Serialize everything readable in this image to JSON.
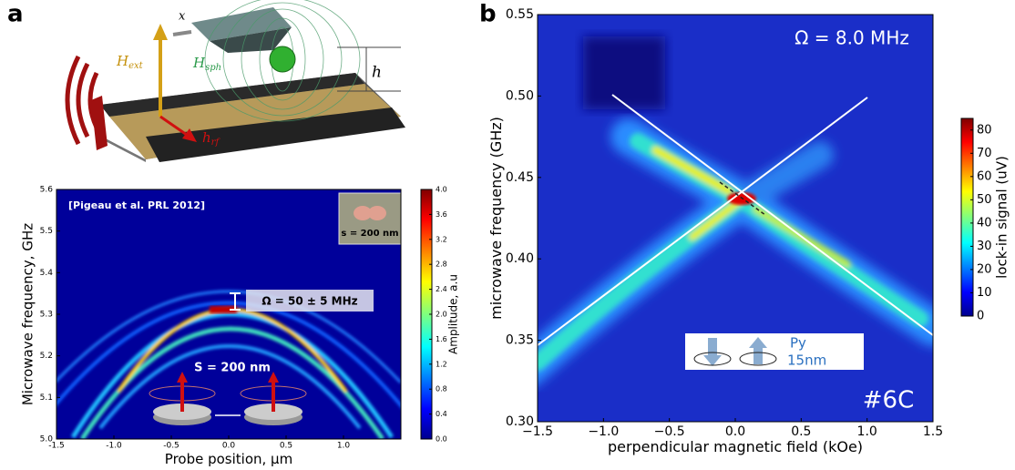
{
  "panel_a": {
    "label": "a",
    "illustration_labels": {
      "x": "x",
      "h_ext": {
        "main": "H",
        "sub": "ext"
      },
      "h_sph": {
        "main": "H",
        "sub": "sph"
      },
      "h": "h",
      "h_rf": {
        "main": "h",
        "sub": "rf"
      }
    },
    "plot": {
      "x_label": "Probe position, μm",
      "y_label": "Microwave frequency, GHz",
      "colorbar_label": "Amplitude, a.u",
      "xlim": [
        -1.5,
        1.5
      ],
      "ylim": [
        5.0,
        5.6
      ],
      "xticks": [
        {
          "value": -1.5,
          "label": "-1.5"
        },
        {
          "value": -1.0,
          "label": "-1.0"
        },
        {
          "value": -0.5,
          "label": "-0.5"
        },
        {
          "value": 0,
          "label": "0.0"
        },
        {
          "value": 0.5,
          "label": "0.5"
        },
        {
          "value": 1.0,
          "label": "1.0"
        }
      ],
      "yticks": [
        {
          "value": 5.0,
          "label": "5.0"
        },
        {
          "value": 5.1,
          "label": "5.1"
        },
        {
          "value": 5.2,
          "label": "5.2"
        },
        {
          "value": 5.3,
          "label": "5.3"
        },
        {
          "value": 5.4,
          "label": "5.4"
        },
        {
          "value": 5.5,
          "label": "5.5"
        },
        {
          "value": 5.6,
          "label": "5.6"
        }
      ],
      "cbar_lim": [
        0,
        4.0
      ],
      "cbar_ticks": [
        {
          "value": 0,
          "label": "0.0"
        },
        {
          "value": 0.4,
          "label": "0.4"
        },
        {
          "value": 0.8,
          "label": "0.8"
        },
        {
          "value": 1.2,
          "label": "1.2"
        },
        {
          "value": 1.6,
          "label": "1.6"
        },
        {
          "value": 2.0,
          "label": "2.0"
        },
        {
          "value": 2.4,
          "label": "2.4"
        },
        {
          "value": 2.8,
          "label": "2.8"
        },
        {
          "value": 3.2,
          "label": "3.2"
        },
        {
          "value": 3.6,
          "label": "3.6"
        },
        {
          "value": 4.0,
          "label": "4.0"
        }
      ],
      "annotations": {
        "citation": "[Pigeau et al. PRL 2012]",
        "inset": "s = 200 nm",
        "splitting": "Ω = 50 ± 5 MHz",
        "spacing": "S = 200 nm"
      }
    }
  },
  "panel_b": {
    "label": "b",
    "plot": {
      "x_label": "perpendicular magnetic field (kOe)",
      "y_label": "microwave frequency (GHz)",
      "colorbar_label": "lock-in signal (uV)",
      "xlim": [
        -1.5,
        1.5
      ],
      "ylim": [
        0.3,
        0.55
      ],
      "xticks": [
        {
          "value": -1.5,
          "label": "−1.5"
        },
        {
          "value": -1.0,
          "label": "−1.0"
        },
        {
          "value": -0.5,
          "label": "−0.5"
        },
        {
          "value": 0,
          "label": "0.0"
        },
        {
          "value": 0.5,
          "label": "0.5"
        },
        {
          "value": 1.0,
          "label": "1.0"
        },
        {
          "value": 1.5,
          "label": "1.5"
        }
      ],
      "yticks": [
        {
          "value": 0.3,
          "label": "0.30"
        },
        {
          "value": 0.35,
          "label": "0.35"
        },
        {
          "value": 0.4,
          "label": "0.40"
        },
        {
          "value": 0.45,
          "label": "0.45"
        },
        {
          "value": 0.5,
          "label": "0.50"
        },
        {
          "value": 0.55,
          "label": "0.55"
        }
      ],
      "cbar_lim": [
        0,
        85
      ],
      "cbar_ticks": [
        0,
        10,
        20,
        30,
        40,
        50,
        60,
        70,
        80
      ],
      "annotations": {
        "omega": "Ω = 8.0 MHz",
        "sample": "#6C",
        "material": "Py",
        "thickness": "15nm"
      }
    }
  }
}
